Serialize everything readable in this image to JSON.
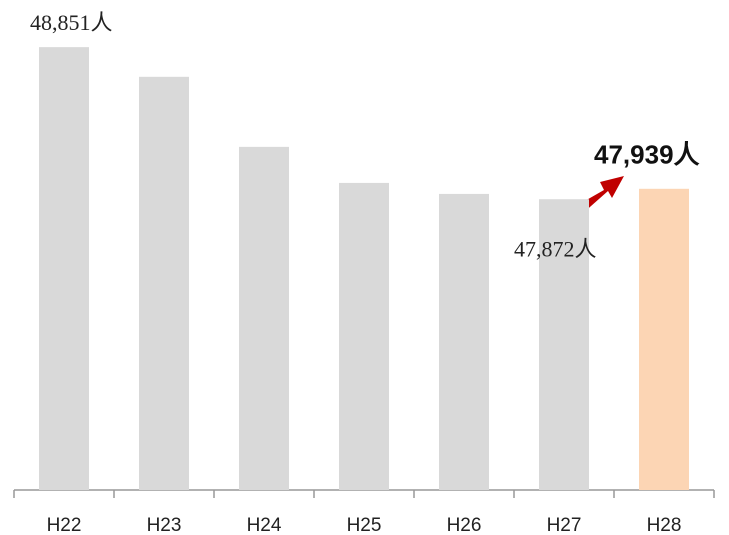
{
  "chart_data": {
    "type": "bar",
    "categories": [
      "H22",
      "H23",
      "H24",
      "H25",
      "H26",
      "H27",
      "H28"
    ],
    "values": [
      48851,
      48660,
      48209,
      47977,
      47906,
      47872,
      47939
    ],
    "value_labels": [
      "48,851人",
      null,
      null,
      null,
      null,
      "47,872人",
      "47,939人"
    ],
    "colors": [
      "#d9d9d9",
      "#d9d9d9",
      "#d9d9d9",
      "#d9d9d9",
      "#d9d9d9",
      "#d9d9d9",
      "#fcd5b4"
    ],
    "ylim": [
      46000,
      49000
    ]
  }
}
